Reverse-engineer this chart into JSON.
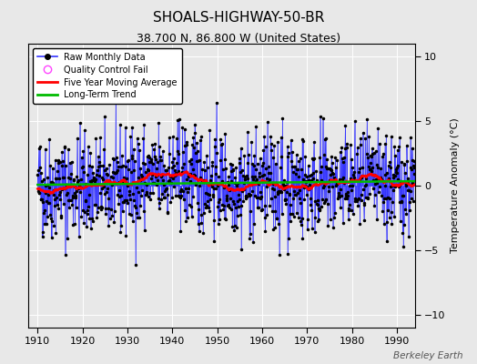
{
  "title": "SHOALS-HIGHWAY-50-BR",
  "subtitle": "38.700 N, 86.800 W (United States)",
  "ylabel": "Temperature Anomaly (°C)",
  "watermark": "Berkeley Earth",
  "xlim": [
    1908,
    1994
  ],
  "ylim": [
    -11,
    11
  ],
  "yticks": [
    -10,
    -5,
    0,
    5,
    10
  ],
  "xticks": [
    1910,
    1920,
    1930,
    1940,
    1950,
    1960,
    1970,
    1980,
    1990
  ],
  "year_start": 1910,
  "year_end": 1993,
  "bg_color": "#e8e8e8",
  "plot_bg_color": "#dcdcdc",
  "grid_color": "#ffffff",
  "bar_color": "#3333ff",
  "dot_color": "#000000",
  "moving_avg_color": "#ff0000",
  "trend_color": "#00bb00",
  "seed": 42
}
